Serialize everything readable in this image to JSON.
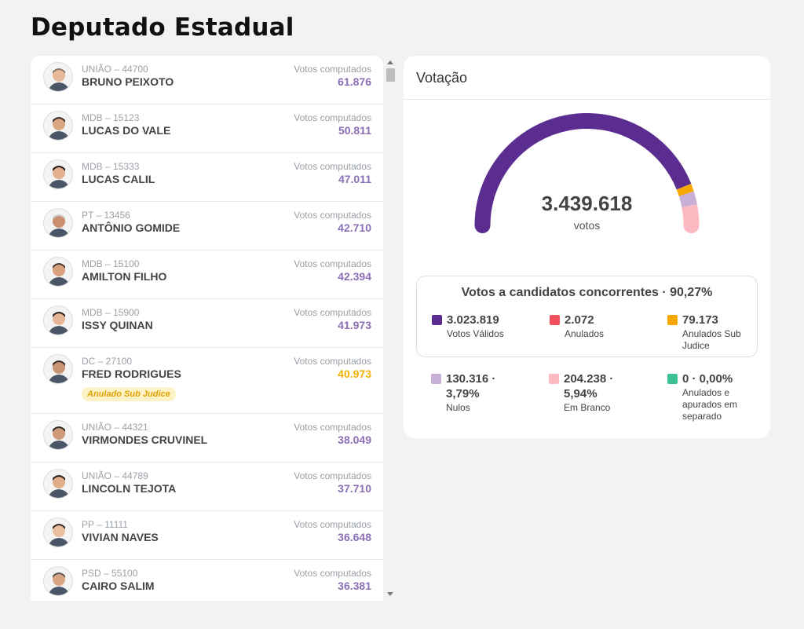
{
  "page_title": "Deputado Estadual",
  "candidates": [
    {
      "party": "UNIÃO – 44700",
      "name": "BRUNO PEIXOTO",
      "votes_label": "Votos computados",
      "votes": "61.876"
    },
    {
      "party": "MDB – 15123",
      "name": "LUCAS DO VALE",
      "votes_label": "Votos computados",
      "votes": "50.811"
    },
    {
      "party": "MDB – 15333",
      "name": "LUCAS CALIL",
      "votes_label": "Votos computados",
      "votes": "47.011"
    },
    {
      "party": "PT – 13456",
      "name": "ANTÔNIO GOMIDE",
      "votes_label": "Votos computados",
      "votes": "42.710"
    },
    {
      "party": "MDB – 15100",
      "name": "AMILTON FILHO",
      "votes_label": "Votos computados",
      "votes": "42.394"
    },
    {
      "party": "MDB – 15900",
      "name": "ISSY QUINAN",
      "votes_label": "Votos computados",
      "votes": "41.973"
    },
    {
      "party": "DC – 27100",
      "name": "FRED RODRIGUES",
      "votes_label": "Votos computados",
      "votes": "40.973",
      "badge": "Anulado Sub Judice"
    },
    {
      "party": "UNIÃO – 44321",
      "name": "VIRMONDES CRUVINEL",
      "votes_label": "Votos computados",
      "votes": "38.049"
    },
    {
      "party": "UNIÃO – 44789",
      "name": "LINCOLN TEJOTA",
      "votes_label": "Votos computados",
      "votes": "37.710"
    },
    {
      "party": "PP – 11111",
      "name": "VIVIAN NAVES",
      "votes_label": "Votos computados",
      "votes": "36.648"
    },
    {
      "party": "PSD – 55100",
      "name": "CAIRO SALIM",
      "votes_label": "Votos computados",
      "votes": "36.381"
    }
  ],
  "voting": {
    "title": "Votação",
    "total": "3.439.618",
    "unit": "votos",
    "gauge_shares": {
      "validos": 0.8791,
      "anulados_sub_judice": 0.023,
      "nulos": 0.0379,
      "em_branco": 0.0594
    },
    "valid_box_title": "Votos a candidatos concorrentes · 90,27%",
    "stats": {
      "validos": {
        "value": "3.023.819",
        "label": "Votos Válidos",
        "color": "#5b2d90"
      },
      "anulados": {
        "value": "2.072",
        "label": "Anulados",
        "color": "#f0505e"
      },
      "sub_judice": {
        "value": "79.173",
        "label": "Anulados Sub Judice",
        "color": "#f6a800"
      },
      "nulos": {
        "value": "130.316 · 3,79%",
        "label": "Nulos",
        "color": "#c8afd6"
      },
      "branco": {
        "value": "204.238 · 5,94%",
        "label": "Em Branco",
        "color": "#fbb9c1"
      },
      "separado": {
        "value": "0 · 0,00%",
        "label": "Anulados e apurados em separado",
        "color": "#3cc195"
      }
    }
  }
}
